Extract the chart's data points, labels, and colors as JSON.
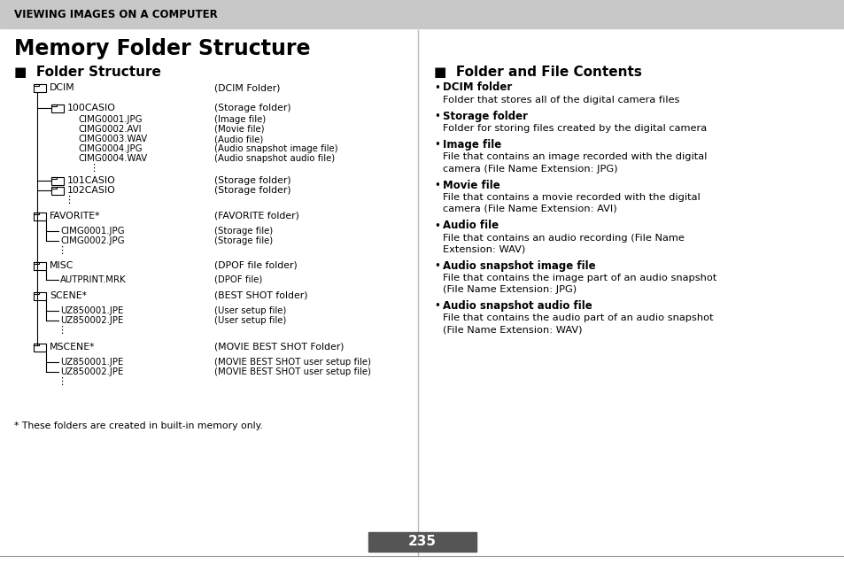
{
  "bg_color": "#ffffff",
  "header_bg": "#c8c8c8",
  "header_text": "VIEWING IMAGES ON A COMPUTER",
  "page_title": "Memory Folder Structure",
  "left_section_title": "■  Folder Structure",
  "right_section_title": "■  Folder and File Contents",
  "footer_note": "* These folders are created in built-in memory only.",
  "page_number": "235",
  "tree_color": "#000000",
  "right_bullet_items": [
    {
      "bold": "DCIM folder",
      "normal": "Folder that stores all of the digital camera files"
    },
    {
      "bold": "Storage folder",
      "normal": "Folder for storing files created by the digital camera"
    },
    {
      "bold": "Image file",
      "normal": "File that contains an image recorded with the digital\ncamera (File Name Extension: JPG)"
    },
    {
      "bold": "Movie file",
      "normal": "File that contains a movie recorded with the digital\ncamera (File Name Extension: AVI)"
    },
    {
      "bold": "Audio file",
      "normal": "File that contains an audio recording (File Name\nExtension: WAV)"
    },
    {
      "bold": "Audio snapshot image file",
      "normal": "File that contains the image part of an audio snapshot\n(File Name Extension: JPG)"
    },
    {
      "bold": "Audio snapshot audio file",
      "normal": "File that contains the audio part of an audio snapshot\n(File Name Extension: WAV)"
    }
  ]
}
